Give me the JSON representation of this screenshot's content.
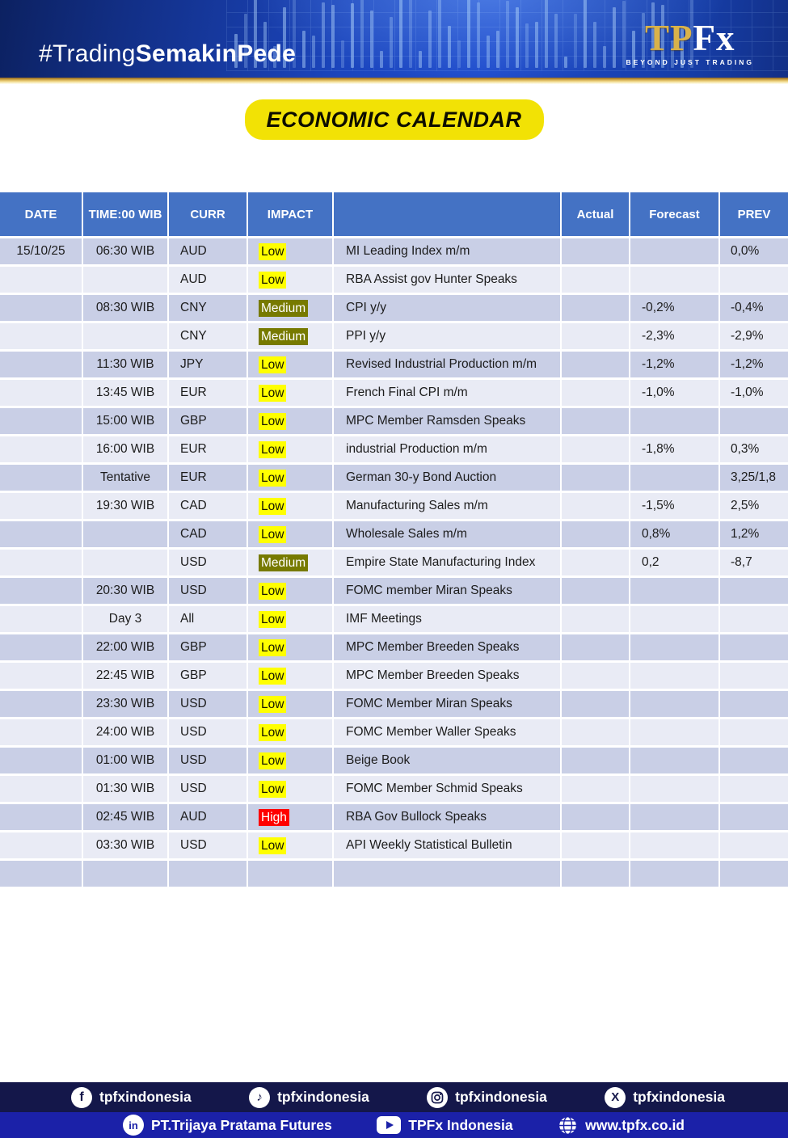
{
  "header": {
    "hashtag_regular": "#Trading",
    "hashtag_bold": "SemakinPede",
    "logo_tp": "TP",
    "logo_fx": "Fx",
    "logo_tagline": "BEYOND JUST TRADING"
  },
  "title": "ECONOMIC CALENDAR",
  "table": {
    "columns": [
      "DATE",
      "TIME:00 WIB",
      "CURR",
      "IMPACT",
      "",
      "Actual",
      "Forecast",
      "PREV"
    ],
    "rows": [
      {
        "date": "15/10/25",
        "time": "06:30 WIB",
        "curr": "AUD",
        "impact": "Low",
        "event": "MI Leading Index m/m",
        "actual": "",
        "forecast": "",
        "prev": "0,0%"
      },
      {
        "date": "",
        "time": "",
        "curr": "AUD",
        "impact": "Low",
        "event": "RBA Assist gov Hunter Speaks",
        "actual": "",
        "forecast": "",
        "prev": ""
      },
      {
        "date": "",
        "time": "08:30 WIB",
        "curr": "CNY",
        "impact": "Medium",
        "event": "CPI y/y",
        "actual": "",
        "forecast": "-0,2%",
        "prev": "-0,4%"
      },
      {
        "date": "",
        "time": "",
        "curr": "CNY",
        "impact": "Medium",
        "event": "PPI y/y",
        "actual": "",
        "forecast": "-2,3%",
        "prev": "-2,9%"
      },
      {
        "date": "",
        "time": "11:30 WIB",
        "curr": "JPY",
        "impact": "Low",
        "event": "Revised Industrial Production m/m",
        "actual": "",
        "forecast": "-1,2%",
        "prev": "-1,2%"
      },
      {
        "date": "",
        "time": "13:45 WIB",
        "curr": "EUR",
        "impact": "Low",
        "event": "French Final CPI m/m",
        "actual": "",
        "forecast": "-1,0%",
        "prev": "-1,0%"
      },
      {
        "date": "",
        "time": "15:00 WIB",
        "curr": "GBP",
        "impact": "Low",
        "event": "MPC Member Ramsden Speaks",
        "actual": "",
        "forecast": "",
        "prev": ""
      },
      {
        "date": "",
        "time": "16:00 WIB",
        "curr": "EUR",
        "impact": "Low",
        "event": "industrial Production m/m",
        "actual": "",
        "forecast": "-1,8%",
        "prev": "0,3%"
      },
      {
        "date": "",
        "time": "Tentative",
        "curr": "EUR",
        "impact": "Low",
        "event": "German 30-y Bond Auction",
        "actual": "",
        "forecast": "",
        "prev": "3,25/1,8"
      },
      {
        "date": "",
        "time": "19:30 WIB",
        "curr": "CAD",
        "impact": "Low",
        "event": "Manufacturing Sales m/m",
        "actual": "",
        "forecast": "-1,5%",
        "prev": "2,5%"
      },
      {
        "date": "",
        "time": "",
        "curr": "CAD",
        "impact": "Low",
        "event": "Wholesale Sales m/m",
        "actual": "",
        "forecast": "0,8%",
        "prev": "1,2%"
      },
      {
        "date": "",
        "time": "",
        "curr": "USD",
        "impact": "Medium",
        "event": "Empire State Manufacturing Index",
        "actual": "",
        "forecast": "0,2",
        "prev": "-8,7"
      },
      {
        "date": "",
        "time": "20:30 WIB",
        "curr": "USD",
        "impact": "Low",
        "event": "FOMC member Miran Speaks",
        "actual": "",
        "forecast": "",
        "prev": ""
      },
      {
        "date": "",
        "time": "Day 3",
        "curr": "All",
        "impact": "Low",
        "event": "IMF Meetings",
        "actual": "",
        "forecast": "",
        "prev": ""
      },
      {
        "date": "",
        "time": "22:00 WIB",
        "curr": "GBP",
        "impact": "Low",
        "event": "MPC Member Breeden Speaks",
        "actual": "",
        "forecast": "",
        "prev": ""
      },
      {
        "date": "",
        "time": "22:45 WIB",
        "curr": "GBP",
        "impact": "Low",
        "event": "MPC Member Breeden Speaks",
        "actual": "",
        "forecast": "",
        "prev": ""
      },
      {
        "date": "",
        "time": "23:30 WIB",
        "curr": "USD",
        "impact": "Low",
        "event": "FOMC Member Miran Speaks",
        "actual": "",
        "forecast": "",
        "prev": ""
      },
      {
        "date": "",
        "time": "24:00 WIB",
        "curr": "USD",
        "impact": "Low",
        "event": "FOMC Member Waller Speaks",
        "actual": "",
        "forecast": "",
        "prev": ""
      },
      {
        "date": "",
        "time": "01:00 WIB",
        "curr": "USD",
        "impact": "Low",
        "event": "Beige Book",
        "actual": "",
        "forecast": "",
        "prev": ""
      },
      {
        "date": "",
        "time": "01:30 WIB",
        "curr": "USD",
        "impact": "Low",
        "event": "FOMC Member Schmid Speaks",
        "actual": "",
        "forecast": "",
        "prev": ""
      },
      {
        "date": "",
        "time": "02:45 WIB",
        "curr": "AUD",
        "impact": "High",
        "event": "RBA Gov Bullock Speaks",
        "actual": "",
        "forecast": "",
        "prev": ""
      },
      {
        "date": "",
        "time": "03:30 WIB",
        "curr": "USD",
        "impact": "Low",
        "event": "API Weekly Statistical Bulletin",
        "actual": "",
        "forecast": "",
        "prev": ""
      },
      {
        "date": "",
        "time": "",
        "curr": "",
        "impact": "",
        "event": "",
        "actual": "",
        "forecast": "",
        "prev": ""
      }
    ]
  },
  "impact_styles": {
    "Low": {
      "bg": "#FFFF00",
      "fg": "#141400"
    },
    "Medium": {
      "bg": "#777A00",
      "fg": "#FFFFFF"
    },
    "High": {
      "bg": "#FF0000",
      "fg": "#FFFFFF"
    }
  },
  "colors": {
    "title_pill_bg": "#F2E205",
    "table_header_bg": "#4472C4",
    "row_dark": "#C9CFE6",
    "row_light": "#E9EBF5",
    "footer_bar1_bg": "#14174A",
    "footer_bar2_bg": "#1B21A8",
    "logo_gold": "#D9B24A"
  },
  "footer": {
    "bar1": [
      {
        "icon": "facebook",
        "label": "tpfxindonesia"
      },
      {
        "icon": "tiktok",
        "label": "tpfxindonesia"
      },
      {
        "icon": "instagram",
        "label": "tpfxindonesia"
      },
      {
        "icon": "x",
        "label": "tpfxindonesia"
      }
    ],
    "bar2": [
      {
        "icon": "linkedin",
        "label": "PT.Trijaya Pratama Futures"
      },
      {
        "icon": "youtube",
        "label": "TPFx Indonesia"
      },
      {
        "icon": "globe",
        "label": "www.tpfx.co.id"
      }
    ]
  }
}
